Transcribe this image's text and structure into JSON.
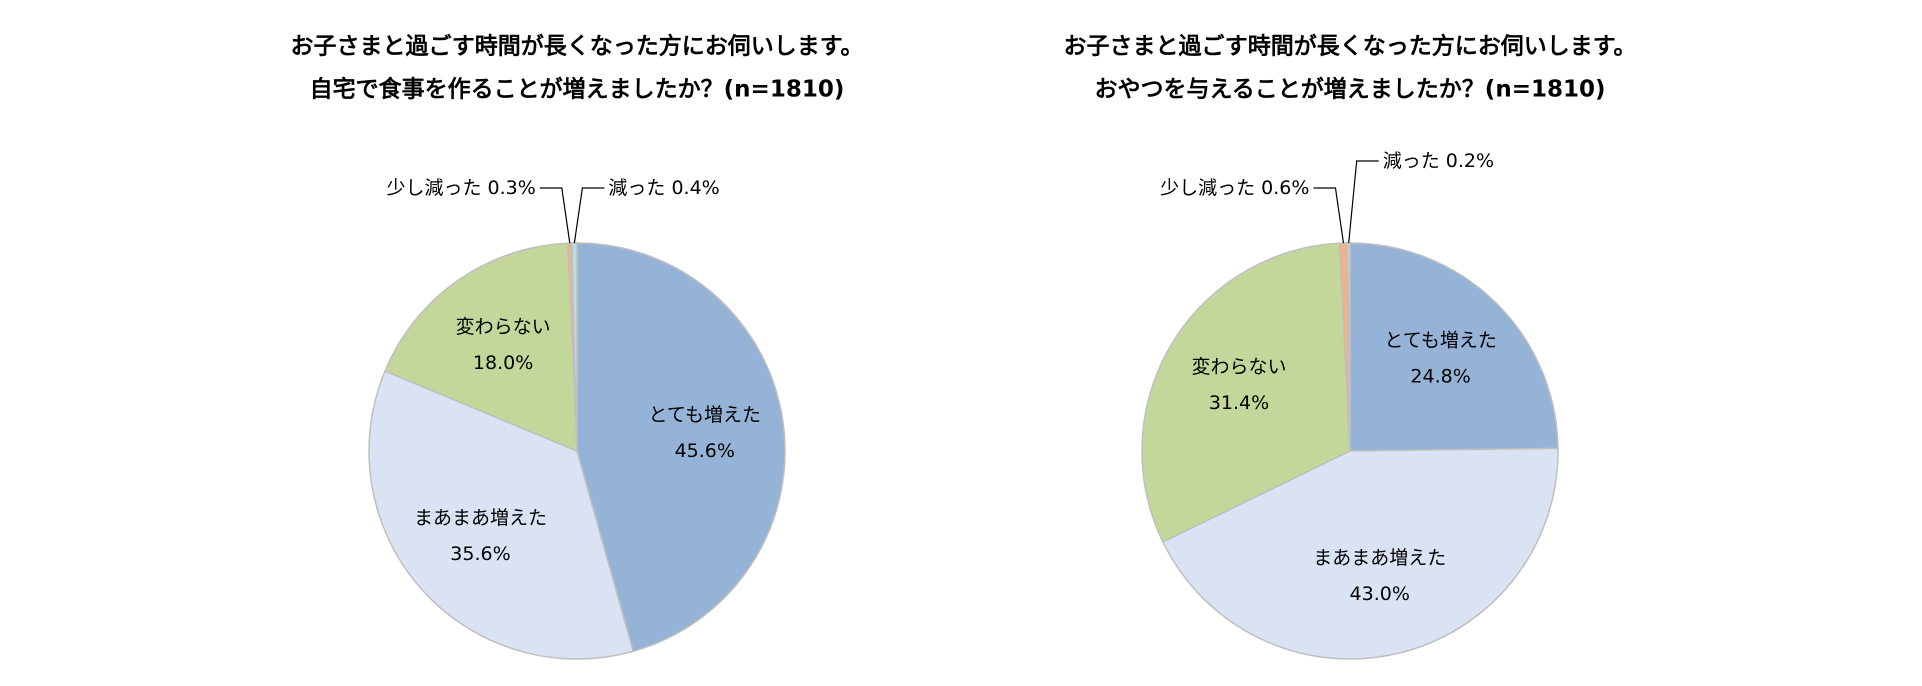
{
  "chart_data": [
    {
      "type": "pie",
      "title": [
        "お子さまと過ごす時間が長くなった方にお伺いします。",
        "自宅で食事を作ることが増えましたか？(n=1810)"
      ],
      "categories": [
        "とても増えた",
        "まあまあ増えた",
        "変わらない",
        "少し減った",
        "減った"
      ],
      "values": [
        45.6,
        35.6,
        18.0,
        0.3,
        0.4
      ],
      "value_labels": [
        "45.6%",
        "35.6%",
        "18.0%",
        "0.3%",
        "0.4%"
      ],
      "colors": [
        "#95b3d7",
        "#dae3f3",
        "#c4d79b",
        "#f4b183",
        "#b7dee8"
      ]
    },
    {
      "type": "pie",
      "title": [
        "お子さまと過ごす時間が長くなった方にお伺いします。",
        "おやつを与えることが増えましたか？(n=1810)"
      ],
      "categories": [
        "とても増えた",
        "まあまあ増えた",
        "変わらない",
        "少し減った",
        "減った"
      ],
      "values": [
        24.8,
        43.0,
        31.4,
        0.6,
        0.2
      ],
      "value_labels": [
        "24.8%",
        "43.0%",
        "31.4%",
        "0.6%",
        "0.2%"
      ],
      "colors": [
        "#95b3d7",
        "#dae3f3",
        "#c4d79b",
        "#f4b183",
        "#b7dee8"
      ]
    }
  ]
}
